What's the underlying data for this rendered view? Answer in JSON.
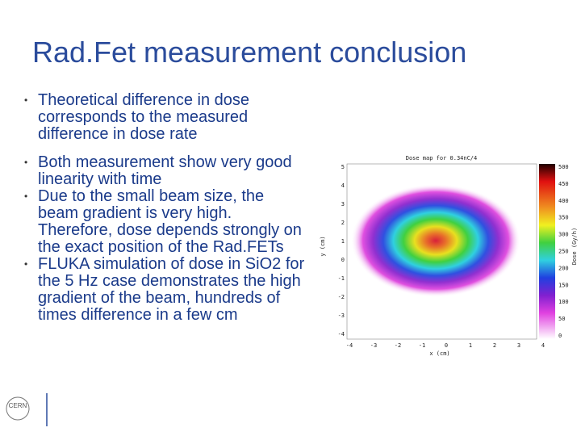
{
  "title": "Rad.Fet measurement conclusion",
  "bullets": [
    "Theoretical difference in dose corresponds to the measured difference in dose rate",
    "Both measurement show very good linearity with time",
    "Due to the small beam size, the beam gradient is very high. Therefore, dose depends strongly on the exact position of the Rad.FETs",
    "FLUKA simulation of dose in SiO2 for the 5 Hz case demonstrates the high gradient of the beam, hundreds of times difference in a few cm"
  ],
  "figure": {
    "title": "Dose map for 0.34nC/4",
    "x_label": "x (cm)",
    "y_label": "y (cm)",
    "colorbar_label": "Dose (Gy/h)",
    "y_ticks": [
      5,
      4,
      3,
      2,
      1,
      0,
      -1,
      -2,
      -3,
      -4
    ],
    "x_ticks": [
      -4,
      -3,
      -2,
      -1,
      0,
      1,
      2,
      3,
      4
    ],
    "colorbar_ticks": [
      500,
      450,
      400,
      350,
      300,
      250,
      200,
      150,
      100,
      50,
      0
    ]
  },
  "logo": "CERN"
}
